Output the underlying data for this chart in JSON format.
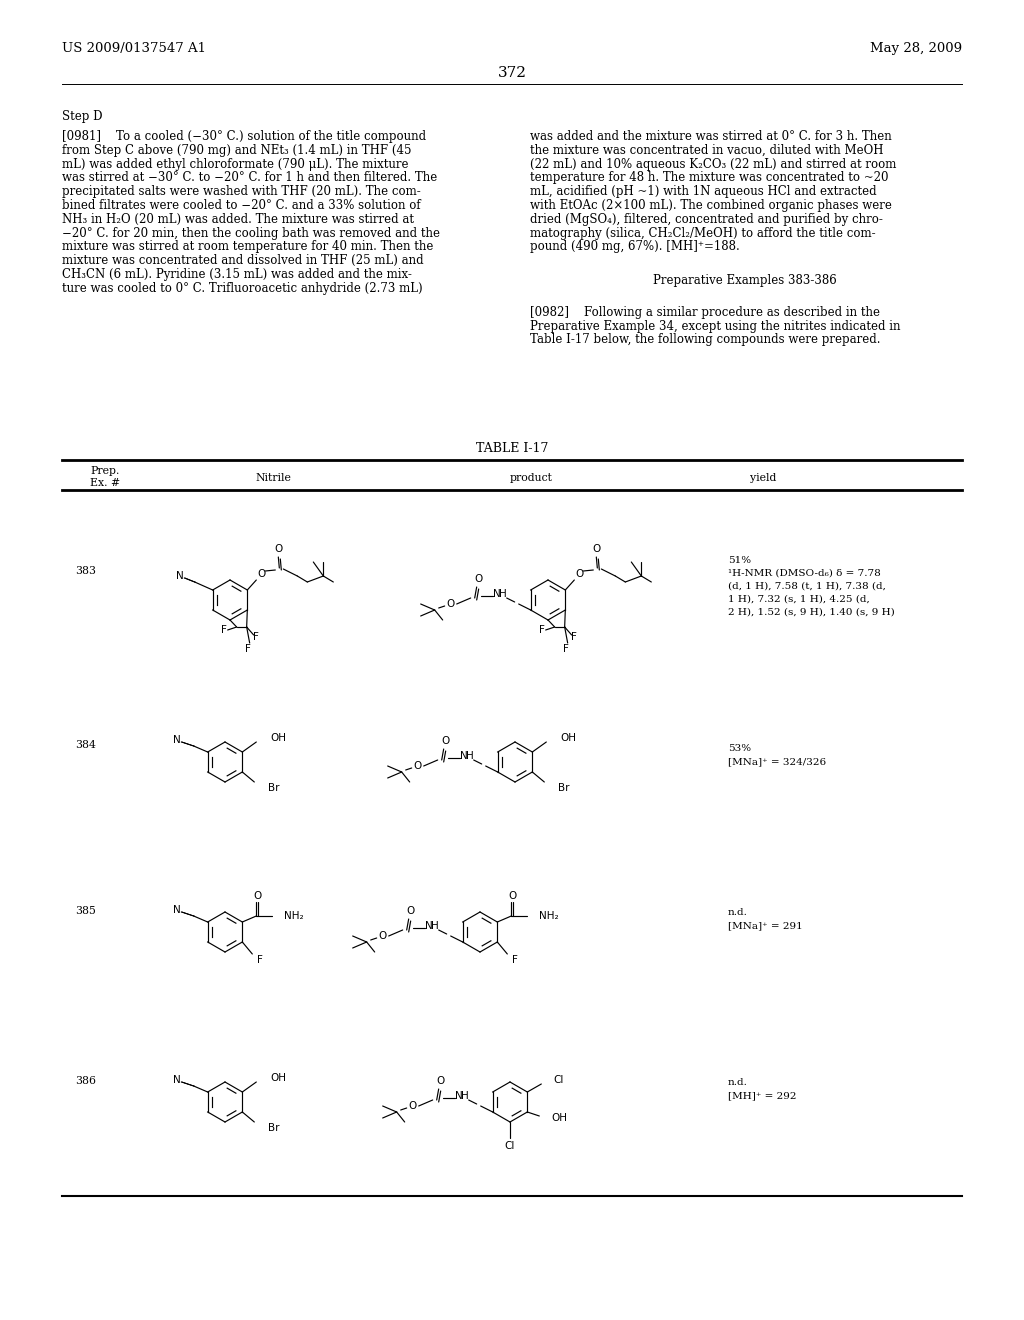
{
  "background_color": "#ffffff",
  "header_left": "US 2009/0137547 A1",
  "header_right": "May 28, 2009",
  "page_number": "372",
  "left_body": [
    "[0981]    To a cooled (−30° C.) solution of the title compound",
    "from Step C above (790 mg) and NEt₃ (1.4 mL) in THF (45",
    "mL) was added ethyl chloroformate (790 μL). The mixture",
    "was stirred at −30° C. to −20° C. for 1 h and then filtered. The",
    "precipitated salts were washed with THF (20 mL). The com-",
    "bined filtrates were cooled to −20° C. and a 33% solution of",
    "NH₃ in H₂O (20 mL) was added. The mixture was stirred at",
    "−20° C. for 20 min, then the cooling bath was removed and the",
    "mixture was stirred at room temperature for 40 min. Then the",
    "mixture was concentrated and dissolved in THF (25 mL) and",
    "CH₃CN (6 mL). Pyridine (3.15 mL) was added and the mix-",
    "ture was cooled to 0° C. Trifluoroacetic anhydride (2.73 mL)"
  ],
  "right_body": [
    "was added and the mixture was stirred at 0° C. for 3 h. Then",
    "the mixture was concentrated in vacuo, diluted with MeOH",
    "(22 mL) and 10% aqueous K₂CO₃ (22 mL) and stirred at room",
    "temperature for 48 h. The mixture was concentrated to ~20",
    "mL, acidified (pH ~1) with 1N aqueous HCl and extracted",
    "with EtOAc (2×100 mL). The combined organic phases were",
    "dried (MgSO₄), filtered, concentrated and purified by chro-",
    "matography (silica, CH₂Cl₂/MeOH) to afford the title com-",
    "pound (490 mg, 67%). [MH]⁺=188."
  ],
  "prep_header": "Preparative Examples 383-386",
  "para_0982": [
    "[0982]    Following a similar procedure as described in the",
    "Preparative Example 34, except using the nitrites indicated in",
    "Table I-17 below, the following compounds were prepared."
  ],
  "table_title": "TABLE I-17",
  "rows": [
    {
      "num": "383",
      "yield": [
        "51%",
        "¹H-NMR (DMSO-d₆) δ = 7.78",
        "(d, 1 H), 7.58 (t, 1 H), 7.38 (d,",
        "1 H), 7.32 (s, 1 H), 4.25 (d,",
        "2 H), 1.52 (s, 9 H), 1.40 (s, 9 H)"
      ]
    },
    {
      "num": "384",
      "yield": [
        "53%",
        "[MNa]⁺ = 324/326"
      ]
    },
    {
      "num": "385",
      "yield": [
        "n.d.",
        "[MNa]⁺ = 291"
      ]
    },
    {
      "num": "386",
      "yield": [
        "n.d.",
        "[MH]⁺ = 292"
      ]
    }
  ]
}
